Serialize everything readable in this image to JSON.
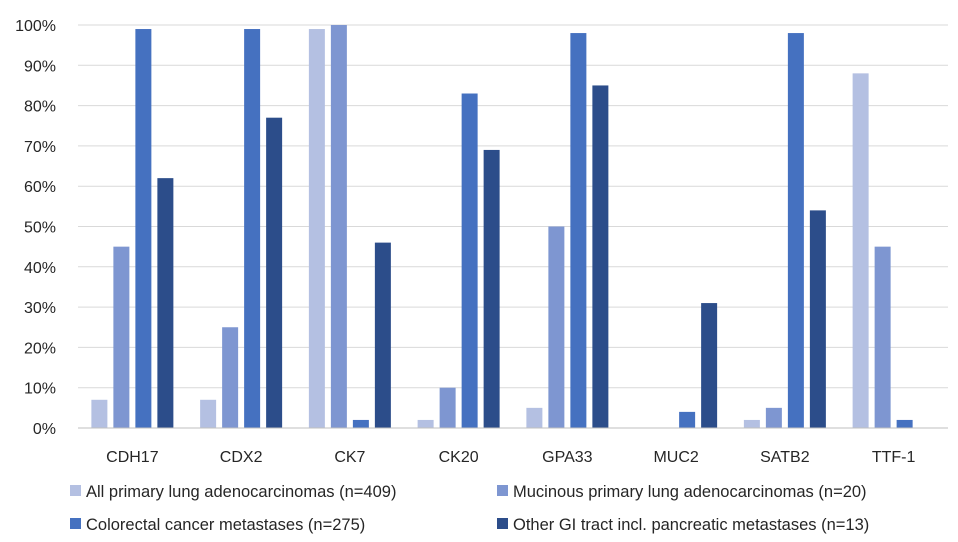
{
  "chart_data": {
    "type": "bar",
    "title": "",
    "xlabel": "",
    "ylabel": "",
    "categories": [
      "CDH17",
      "CDX2",
      "CK7",
      "CK20",
      "GPA33",
      "MUC2",
      "SATB2",
      "TTF-1"
    ],
    "ylim": [
      0,
      100
    ],
    "yticks": [
      "0%",
      "10%",
      "20%",
      "30%",
      "40%",
      "50%",
      "60%",
      "70%",
      "80%",
      "90%",
      "100%"
    ],
    "grid": true,
    "legend_position": "bottom",
    "series": [
      {
        "name": "All primary lung adenocarcinomas (n=409)",
        "color": "#b4c0e2",
        "values": [
          7,
          7,
          99,
          2,
          5,
          0,
          2,
          88
        ]
      },
      {
        "name": "Mucinous primary lung adenocarcinomas (n=20)",
        "color": "#7e96d1",
        "values": [
          45,
          25,
          100,
          10,
          50,
          0,
          5,
          45
        ]
      },
      {
        "name": "Colorectal cancer metastases (n=275)",
        "color": "#4571c0",
        "values": [
          99,
          99,
          2,
          83,
          98,
          4,
          98,
          2
        ]
      },
      {
        "name": "Other GI tract incl. pancreatic metastases (n=13)",
        "color": "#2c4d8a",
        "values": [
          62,
          77,
          46,
          69,
          85,
          31,
          54,
          0
        ]
      }
    ]
  }
}
